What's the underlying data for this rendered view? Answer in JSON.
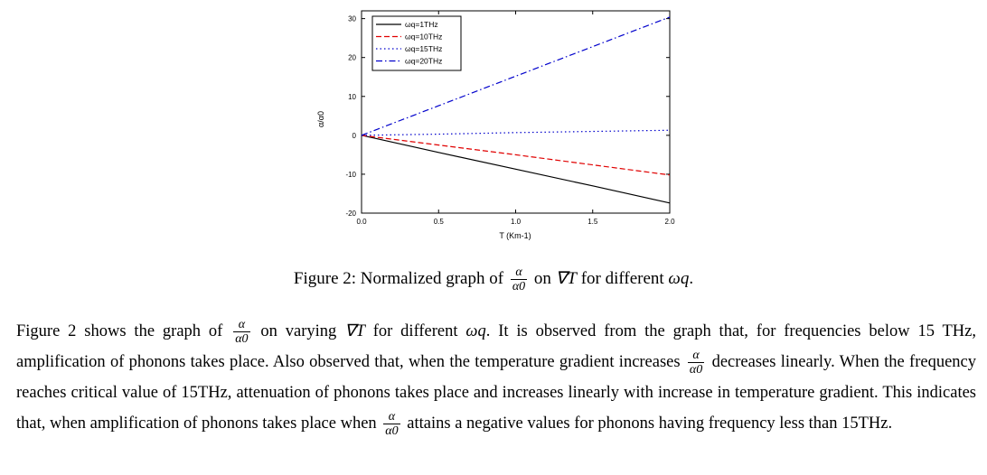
{
  "chart_data": {
    "type": "line",
    "xlabel": "T (Km-1)",
    "ylabel": "α/α0",
    "xlim": [
      0,
      2
    ],
    "ylim": [
      -20,
      32
    ],
    "xticks": [
      "0.0",
      "0.5",
      "1.0",
      "1.5",
      "2.0"
    ],
    "yticks": [
      "-20",
      "-10",
      "0",
      "10",
      "20",
      "30"
    ],
    "legend_position": "top-left",
    "series": [
      {
        "name": "ωq=1THz",
        "color": "#000000",
        "style": "solid",
        "x": [
          0,
          0.5,
          1.0,
          1.5,
          2.0
        ],
        "y": [
          0,
          -4.4,
          -8.7,
          -13.0,
          -17.4
        ]
      },
      {
        "name": "ωq=10THz",
        "color": "#e00000",
        "style": "dashed",
        "x": [
          0,
          0.5,
          1.0,
          1.5,
          2.0
        ],
        "y": [
          0,
          -2.5,
          -5.0,
          -7.6,
          -10.2
        ]
      },
      {
        "name": "ωq=15THz",
        "color": "#0000cc",
        "style": "dotted",
        "x": [
          0,
          0.5,
          1.0,
          1.5,
          2.0
        ],
        "y": [
          0,
          0.3,
          0.7,
          1.0,
          1.3
        ]
      },
      {
        "name": "ωq=20THz",
        "color": "#0000cc",
        "style": "dashdot",
        "x": [
          0,
          0.5,
          1.0,
          1.5,
          2.0
        ],
        "y": [
          0,
          7.6,
          15.2,
          22.8,
          30.4
        ]
      }
    ]
  },
  "caption": {
    "prefix": "Figure 2: Normalized graph of",
    "frac_num": "α",
    "frac_den": "α0",
    "mid": "on",
    "grad": "∇T",
    "mid2": "for different",
    "omega": "ωq",
    "end": "."
  },
  "paragraph": {
    "p1": "Figure 2 shows the graph of",
    "p2": "on varying",
    "grad": "∇T",
    "p3": "for different",
    "omega": "ωq",
    "p4": ". It is observed from the graph that, for frequencies below 15 THz, amplification of phonons takes place. Also observed that, when the temperature gradient increases",
    "p5": "decreases linearly. When the frequency reaches critical value of 15THz, attenuation of phonons takes place and increases linearly with increase in temperature gradient. This indicates that, when amplification of phonons takes place when",
    "p6": "attains a negative values for phonons having frequency less than 15THz.",
    "frac_num": "α",
    "frac_den": "α0"
  }
}
